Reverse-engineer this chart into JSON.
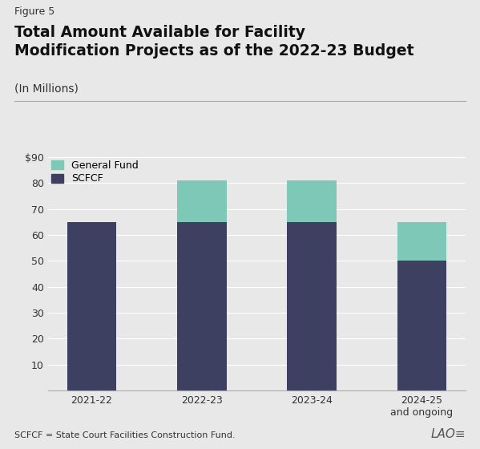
{
  "figure_label": "Figure 5",
  "title": "Total Amount Available for Facility\nModification Projects as of the 2022-23 Budget",
  "subtitle": "(In Millions)",
  "categories": [
    "2021-22",
    "2022-23",
    "2023-24",
    "2024-25\nand ongoing"
  ],
  "scfcf_values": [
    65,
    65,
    65,
    50
  ],
  "general_fund_values": [
    0,
    16,
    16,
    15
  ],
  "scfcf_color": "#3d4060",
  "general_fund_color": "#7ec8b8",
  "background_color": "#e8e8e8",
  "plot_background_color": "#e8e8e8",
  "ylim": [
    0,
    90
  ],
  "yticks": [
    0,
    10,
    20,
    30,
    40,
    50,
    60,
    70,
    80,
    90
  ],
  "grid_color": "#ffffff",
  "footnote": "SCFCF = State Court Facilities Construction Fund.",
  "legend_labels": [
    "General Fund",
    "SCFCF"
  ],
  "lao_text": "LAO≡"
}
